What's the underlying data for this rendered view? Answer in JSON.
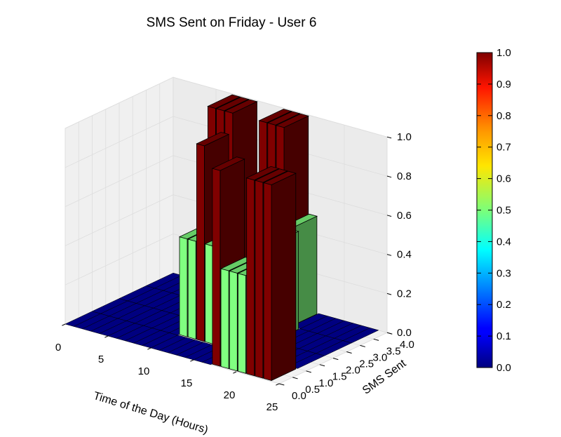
{
  "chart_data": {
    "type": "bar3d",
    "title": "SMS Sent on Friday - User 6",
    "xlabel": "Time of the Day (Hours)",
    "ylabel": "SMS Sent",
    "zlabel": "",
    "xlim": [
      0,
      25
    ],
    "ylim": [
      0,
      4
    ],
    "zlim": [
      0,
      1
    ],
    "x_ticks": [
      "0",
      "5",
      "10",
      "15",
      "20",
      "25"
    ],
    "y_ticks": [
      "0.0",
      "0.5",
      "1.0",
      "1.5",
      "2.0",
      "2.5",
      "3.0",
      "3.5",
      "4.0"
    ],
    "z_ticks": [
      "0.0",
      "0.2",
      "0.4",
      "0.6",
      "0.8",
      "1.0"
    ],
    "colormap": "jet",
    "colorbar": {
      "min": 0,
      "max": 1,
      "ticks": [
        "0.0",
        "0.1",
        "0.2",
        "0.3",
        "0.4",
        "0.5",
        "0.6",
        "0.7",
        "0.8",
        "0.9",
        "1.0"
      ]
    },
    "bars": [
      {
        "hour": 7,
        "sms": 3,
        "value": 1.0
      },
      {
        "hour": 8,
        "sms": 3,
        "value": 1.0
      },
      {
        "hour": 9,
        "sms": 3,
        "value": 1.0
      },
      {
        "hour": 10,
        "sms": 1,
        "value": 0.5
      },
      {
        "hour": 11,
        "sms": 1,
        "value": 0.5
      },
      {
        "hour": 12,
        "sms": 1,
        "value": 1.0
      },
      {
        "hour": 13,
        "sms": 1,
        "value": 0.5
      },
      {
        "hour": 13,
        "sms": 3,
        "value": 1.0
      },
      {
        "hour": 14,
        "sms": 3,
        "value": 1.0
      },
      {
        "hour": 15,
        "sms": 3,
        "value": 1.0
      },
      {
        "hour": 16,
        "sms": 3,
        "value": 0.5
      },
      {
        "hour": 17,
        "sms": 0,
        "value": 1.0
      },
      {
        "hour": 17,
        "sms": 2,
        "value": 0.5
      },
      {
        "hour": 18,
        "sms": 0,
        "value": 0.5
      },
      {
        "hour": 19,
        "sms": 0,
        "value": 0.5
      },
      {
        "hour": 20,
        "sms": 0,
        "value": 0.5
      },
      {
        "hour": 21,
        "sms": 0,
        "value": 1.0
      },
      {
        "hour": 22,
        "sms": 0,
        "value": 1.0
      },
      {
        "hour": 23,
        "sms": 0,
        "value": 1.0
      }
    ]
  }
}
